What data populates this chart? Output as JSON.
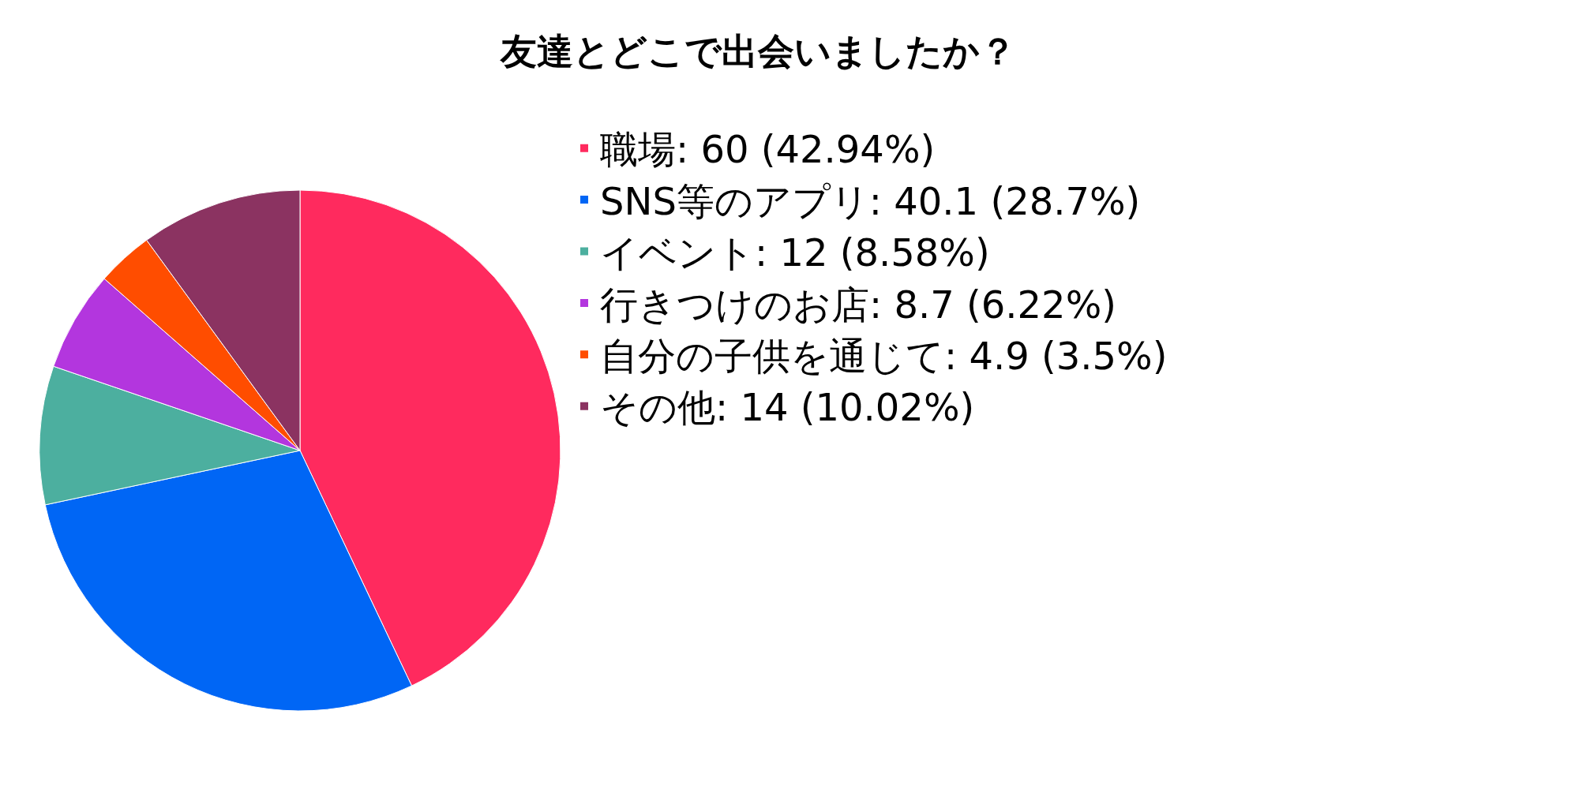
{
  "chart_data": {
    "type": "pie",
    "title": "友達とどこで出会いましたか？",
    "categories": [
      "職場",
      "SNS等のアプリ",
      "イベント",
      "行きつけのお店",
      "自分の子供を通じて",
      "その他"
    ],
    "values": [
      60,
      40.1,
      12,
      8.7,
      4.9,
      14
    ],
    "value_labels": [
      "60 (42.94%)",
      "40.1 (28.7%)",
      "12 (8.58%)",
      "8.7 (6.22%)",
      "4.9 (3.5%)",
      "14 (10.02%)"
    ],
    "colors": [
      "#ff2a5e",
      "#0066f5",
      "#4caf9f",
      "#b336de",
      "#ff4d00",
      "#8b3361"
    ],
    "legend": "right"
  }
}
